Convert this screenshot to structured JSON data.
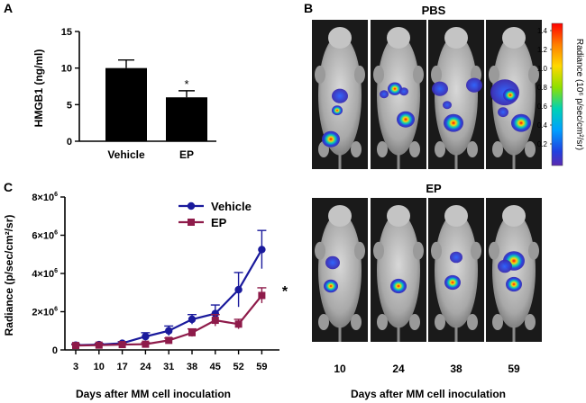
{
  "panels": {
    "a": {
      "letter": "A"
    },
    "b": {
      "letter": "B",
      "top_label": "PBS",
      "bottom_label": "EP",
      "days": [
        "10",
        "24",
        "38",
        "59"
      ],
      "xlabel": "Days after MM cell inoculation"
    },
    "c": {
      "letter": "C"
    }
  },
  "colorbar": {
    "title": "Radiance (10⁶ p/sec/cm²/sr)",
    "ticks": [
      "1.4",
      "1.2",
      "1.0",
      "0.8",
      "0.6",
      "0.4",
      "0.2"
    ],
    "colors": [
      "#ff0000",
      "#ff7f00",
      "#ffd800",
      "#8fe000",
      "#00d2b4",
      "#00a0ff",
      "#2040e0",
      "#5a2ab0"
    ]
  },
  "chart_data": [
    {
      "panel": "A",
      "type": "bar",
      "categories": [
        "Vehicle",
        "EP"
      ],
      "values": [
        10,
        6
      ],
      "errors": [
        1.1,
        0.9
      ],
      "annotations": [
        "",
        "*"
      ],
      "ylabel": "HMGB1 (ng/ml)",
      "ylim": [
        0,
        15
      ],
      "yticks": [
        "0",
        "5",
        "10",
        "15"
      ],
      "bar_color": "#000000"
    },
    {
      "panel": "C",
      "type": "line",
      "x": [
        3,
        10,
        17,
        24,
        31,
        38,
        45,
        52,
        59
      ],
      "xticks": [
        "3",
        "10",
        "17",
        "24",
        "31",
        "38",
        "45",
        "52",
        "59"
      ],
      "xlabel": "Days after  MM cell inoculation",
      "ylabel": "Radiance (p/sec/cm²/sr)",
      "ylim": [
        0,
        8000000
      ],
      "yticks": [
        {
          "mant": "0",
          "exp": ""
        },
        {
          "mant": "2×10",
          "exp": "6"
        },
        {
          "mant": "4×10",
          "exp": "6"
        },
        {
          "mant": "6×10",
          "exp": "6"
        },
        {
          "mant": "8×10",
          "exp": "6"
        }
      ],
      "significance": "*",
      "series": [
        {
          "name": "Vehicle",
          "color": "#1a1a9c",
          "marker": "circle",
          "values": [
            250000,
            280000,
            350000,
            700000,
            1000000,
            1600000,
            1900000,
            3150000,
            5250000
          ],
          "errors": [
            60000,
            60000,
            80000,
            200000,
            250000,
            250000,
            450000,
            900000,
            1000000
          ]
        },
        {
          "name": "EP",
          "color": "#8e1b4a",
          "marker": "square",
          "values": [
            230000,
            250000,
            280000,
            300000,
            500000,
            900000,
            1550000,
            1350000,
            2850000
          ],
          "errors": [
            50000,
            50000,
            60000,
            80000,
            120000,
            200000,
            300000,
            250000,
            400000
          ]
        }
      ]
    }
  ]
}
